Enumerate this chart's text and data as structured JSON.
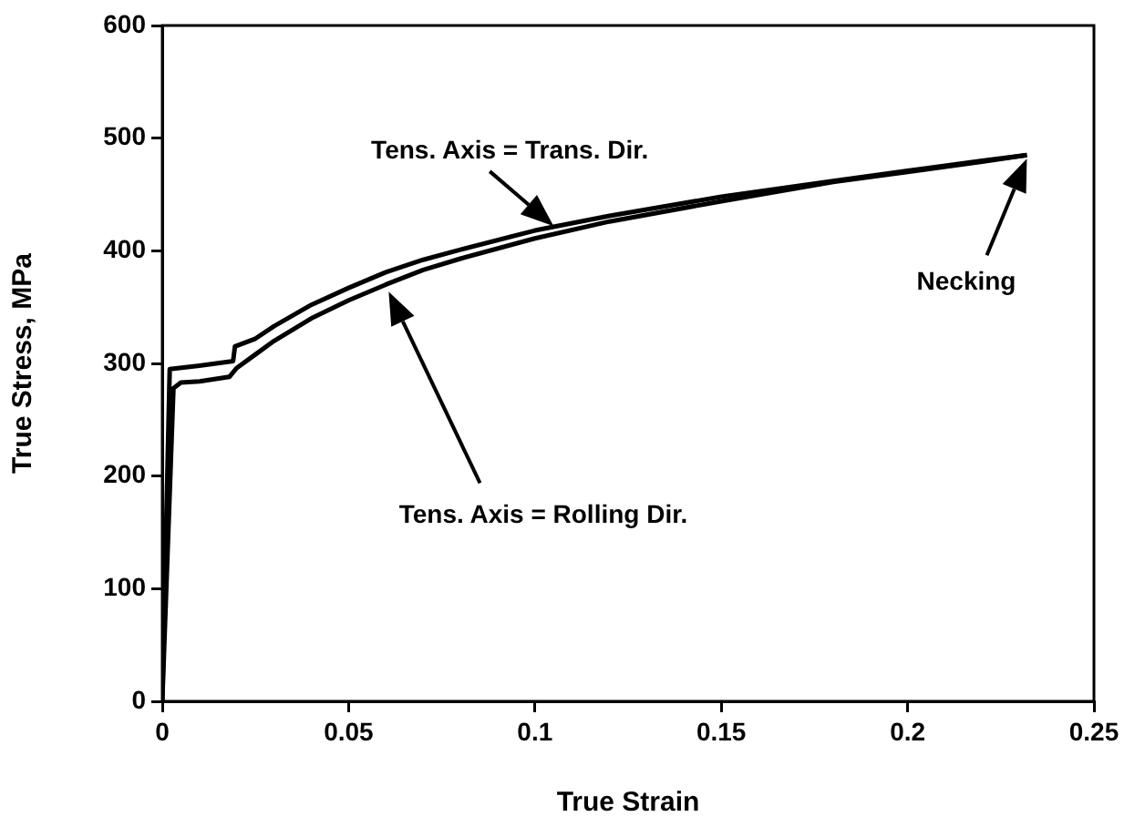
{
  "chart_data": {
    "type": "line",
    "xlabel": "True Strain",
    "ylabel": "True Stress, MPa",
    "xlim": [
      0,
      0.25
    ],
    "ylim": [
      0,
      600
    ],
    "xticks": [
      0,
      0.05,
      0.1,
      0.15,
      0.2,
      0.25
    ],
    "yticks": [
      0,
      100,
      200,
      300,
      400,
      500,
      600
    ],
    "marker": "none",
    "line_style": "solid",
    "series": [
      {
        "color": "#000000",
        "x": [
          0,
          0.002,
          0.01,
          0.019,
          0.0195,
          0.025,
          0.03,
          0.04,
          0.05,
          0.06,
          0.07,
          0.08,
          0.1,
          0.12,
          0.15,
          0.18,
          0.2,
          0.22,
          0.232
        ],
        "values": [
          0,
          295,
          298,
          302,
          315,
          322,
          333,
          352,
          367,
          381,
          392,
          401,
          418,
          431,
          448,
          462,
          471,
          480,
          485
        ]
      },
      {
        "color": "#000000",
        "x": [
          0,
          0.003,
          0.005,
          0.01,
          0.018,
          0.02,
          0.025,
          0.03,
          0.04,
          0.05,
          0.06,
          0.07,
          0.08,
          0.1,
          0.12,
          0.15,
          0.18,
          0.2,
          0.22,
          0.232
        ],
        "values": [
          0,
          278,
          283,
          284,
          288,
          296,
          308,
          320,
          340,
          356,
          370,
          383,
          393,
          411,
          426,
          444,
          461,
          470,
          479,
          485
        ]
      }
    ],
    "annotations": [
      {
        "text": "Tens. Axis = Trans. Dir.",
        "x": 0.105,
        "y": 422
      },
      "Tens. Axis = Rolling Dir.",
      "Necking"
    ]
  }
}
